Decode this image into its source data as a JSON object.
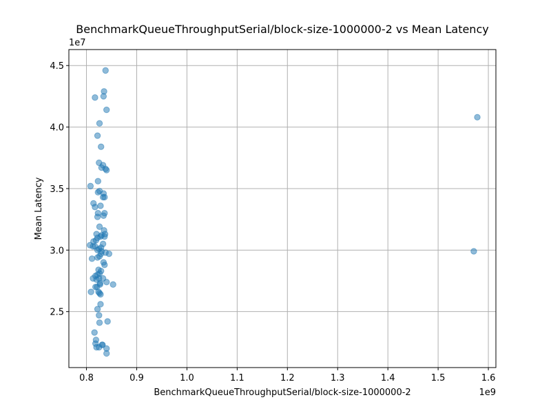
{
  "chart_data": {
    "type": "scatter",
    "title": "BenchmarkQueueThroughputSerial/block-size-1000000-2 vs Mean Latency",
    "xlabel": "BenchmarkQueueThroughputSerial/block-size-1000000-2",
    "ylabel": "Mean Latency",
    "x_offset_label": "1e9",
    "y_offset_label": "1e7",
    "x_scale": 1000000000,
    "y_scale": 10000000,
    "xlim": [
      0.765,
      1.615
    ],
    "ylim": [
      2.045,
      4.63
    ],
    "x_ticks": [
      0.8,
      0.9,
      1.0,
      1.1,
      1.2,
      1.3,
      1.4,
      1.5,
      1.6
    ],
    "x_tick_labels": [
      "0.8",
      "0.9",
      "1.0",
      "1.1",
      "1.2",
      "1.3",
      "1.4",
      "1.5",
      "1.6"
    ],
    "y_ticks": [
      2.5,
      3.0,
      3.5,
      4.0,
      4.5
    ],
    "y_tick_labels": [
      "2.5",
      "3.0",
      "3.5",
      "4.0",
      "4.5"
    ],
    "grid": true,
    "color": "#1f77b4",
    "points": [
      [
        0.838,
        4.46
      ],
      [
        0.835,
        4.29
      ],
      [
        0.834,
        4.25
      ],
      [
        0.817,
        4.24
      ],
      [
        0.84,
        4.14
      ],
      [
        0.826,
        4.03
      ],
      [
        0.822,
        3.93
      ],
      [
        0.829,
        3.84
      ],
      [
        0.825,
        3.71
      ],
      [
        0.833,
        3.69
      ],
      [
        0.83,
        3.67
      ],
      [
        0.838,
        3.66
      ],
      [
        0.84,
        3.65
      ],
      [
        0.823,
        3.56
      ],
      [
        0.808,
        3.52
      ],
      [
        0.826,
        3.48
      ],
      [
        0.823,
        3.47
      ],
      [
        0.834,
        3.46
      ],
      [
        0.836,
        3.43
      ],
      [
        0.833,
        3.43
      ],
      [
        0.814,
        3.38
      ],
      [
        0.817,
        3.35
      ],
      [
        0.828,
        3.36
      ],
      [
        0.836,
        3.3
      ],
      [
        0.823,
        3.3
      ],
      [
        0.834,
        3.28
      ],
      [
        0.822,
        3.27
      ],
      [
        0.826,
        3.19
      ],
      [
        0.835,
        3.16
      ],
      [
        0.82,
        3.13
      ],
      [
        0.83,
        3.12
      ],
      [
        0.837,
        3.13
      ],
      [
        0.836,
        3.11
      ],
      [
        0.828,
        3.11
      ],
      [
        0.822,
        3.1
      ],
      [
        0.819,
        3.08
      ],
      [
        0.814,
        3.07
      ],
      [
        0.833,
        3.05
      ],
      [
        0.807,
        3.04
      ],
      [
        0.813,
        3.03
      ],
      [
        0.817,
        3.03
      ],
      [
        0.825,
        3.01
      ],
      [
        0.829,
        3.02
      ],
      [
        0.822,
        3.0
      ],
      [
        0.83,
        2.99
      ],
      [
        0.838,
        2.98
      ],
      [
        0.845,
        2.97
      ],
      [
        0.829,
        2.97
      ],
      [
        0.822,
        2.94
      ],
      [
        0.826,
        2.95
      ],
      [
        0.811,
        2.93
      ],
      [
        0.834,
        2.9
      ],
      [
        0.836,
        2.88
      ],
      [
        0.824,
        2.84
      ],
      [
        0.829,
        2.83
      ],
      [
        0.826,
        2.81
      ],
      [
        0.818,
        2.79
      ],
      [
        0.822,
        2.8
      ],
      [
        0.813,
        2.77
      ],
      [
        0.825,
        2.77
      ],
      [
        0.833,
        2.77
      ],
      [
        0.82,
        2.76
      ],
      [
        0.84,
        2.74
      ],
      [
        0.827,
        2.73
      ],
      [
        0.853,
        2.72
      ],
      [
        0.827,
        2.72
      ],
      [
        0.821,
        2.7
      ],
      [
        0.818,
        2.7
      ],
      [
        0.824,
        2.66
      ],
      [
        0.826,
        2.65
      ],
      [
        0.809,
        2.66
      ],
      [
        0.828,
        2.64
      ],
      [
        0.828,
        2.56
      ],
      [
        0.822,
        2.52
      ],
      [
        0.825,
        2.47
      ],
      [
        0.826,
        2.41
      ],
      [
        0.842,
        2.42
      ],
      [
        0.816,
        2.33
      ],
      [
        0.819,
        2.27
      ],
      [
        0.818,
        2.24
      ],
      [
        0.831,
        2.23
      ],
      [
        0.832,
        2.23
      ],
      [
        0.82,
        2.21
      ],
      [
        0.825,
        2.21
      ],
      [
        0.84,
        2.2
      ],
      [
        0.84,
        2.16
      ],
      [
        1.571,
        2.99
      ],
      [
        1.578,
        4.08
      ]
    ]
  }
}
